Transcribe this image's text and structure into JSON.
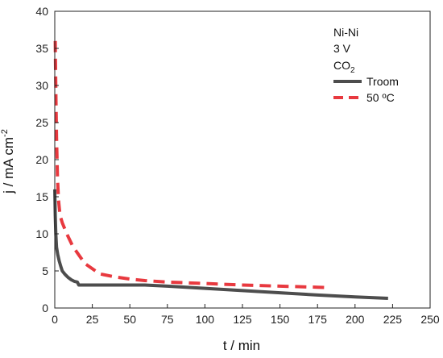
{
  "chart_data": {
    "type": "line",
    "xlabel": "t / min",
    "ylabel": {
      "base": "j / mA cm",
      "sup": "-2"
    },
    "xlim": [
      0,
      250
    ],
    "ylim": [
      0,
      40
    ],
    "xticks": [
      "0",
      "25",
      "50",
      "75",
      "100",
      "125",
      "150",
      "175",
      "200",
      "225",
      "250"
    ],
    "yticks": [
      "0",
      "5",
      "10",
      "15",
      "20",
      "25",
      "30",
      "35",
      "40"
    ],
    "grid": false,
    "annotations": {
      "line1": "Ni-Ni",
      "line2": "3 V",
      "line3_base": "CO",
      "line3_sub": "2"
    },
    "legend_position": "top-right",
    "series": [
      {
        "name": "Troom",
        "color": "#4d4d4d",
        "style": "solid",
        "x": [
          0,
          0.3,
          0.7,
          1.2,
          2,
          3,
          4,
          5,
          7,
          9,
          11,
          13,
          15,
          16,
          20,
          30,
          40,
          50,
          60,
          75,
          100,
          125,
          150,
          175,
          200,
          222
        ],
        "y": [
          16,
          12.5,
          10,
          8.2,
          7.2,
          6.3,
          5.6,
          5.0,
          4.5,
          4.1,
          3.8,
          3.6,
          3.5,
          3.1,
          3.1,
          3.1,
          3.1,
          3.1,
          3.1,
          2.95,
          2.65,
          2.35,
          2.05,
          1.75,
          1.5,
          1.3
        ]
      },
      {
        "name": "50 ºC",
        "color": "#e8393f",
        "style": "dashed",
        "x": [
          0.3,
          0.5,
          0.8,
          1.2,
          1.8,
          2.5,
          3.5,
          5,
          8,
          12,
          20,
          30,
          40,
          50,
          60,
          75,
          100,
          125,
          150,
          175,
          182
        ],
        "y": [
          36,
          33,
          28,
          23,
          17.5,
          14.5,
          12.5,
          11.5,
          10,
          8.3,
          6,
          4.6,
          4.2,
          3.9,
          3.7,
          3.5,
          3.3,
          3.1,
          2.95,
          2.8,
          2.75
        ]
      }
    ]
  }
}
